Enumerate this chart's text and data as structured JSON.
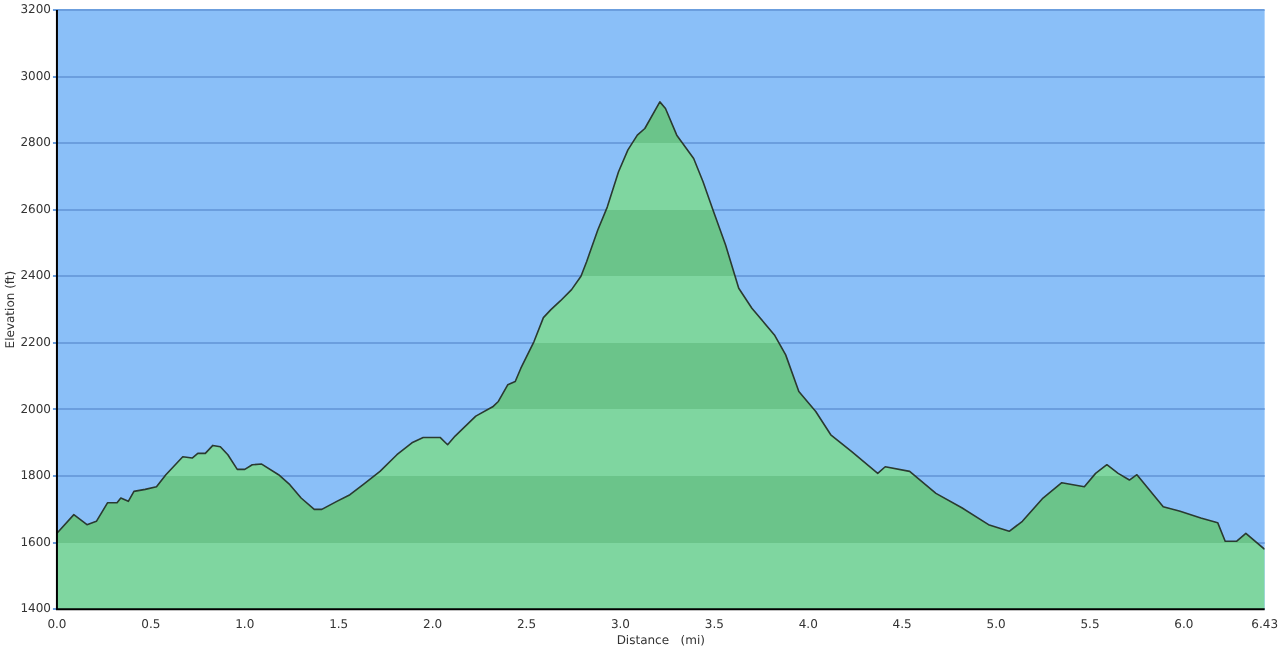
{
  "chart_data": {
    "type": "area",
    "xlabel": "Distance   (mi)",
    "ylabel": "Elevation (ft)",
    "xlim": [
      0,
      6.43
    ],
    "ylim": [
      1400,
      3200
    ],
    "xticks": [
      {
        "value": 0,
        "label": "0.0"
      },
      {
        "value": 0.5,
        "label": "0.5"
      },
      {
        "value": 1,
        "label": "1.0"
      },
      {
        "value": 1.5,
        "label": "1.5"
      },
      {
        "value": 2,
        "label": "2.0"
      },
      {
        "value": 2.5,
        "label": "2.5"
      },
      {
        "value": 3,
        "label": "3.0"
      },
      {
        "value": 3.5,
        "label": "3.5"
      },
      {
        "value": 4,
        "label": "4.0"
      },
      {
        "value": 4.5,
        "label": "4.5"
      },
      {
        "value": 5,
        "label": "5.0"
      },
      {
        "value": 5.5,
        "label": "5.5"
      },
      {
        "value": 6,
        "label": "6.0"
      },
      6.43
    ],
    "yticks": [
      1400,
      1600,
      1800,
      2000,
      2200,
      2400,
      2600,
      2800,
      3000,
      3200
    ],
    "grid": "y",
    "series": [
      {
        "color": "#7fd6a0",
        "x": [
          0,
          0.09,
          0.16,
          0.21,
          0.27,
          0.32,
          0.34,
          0.38,
          0.41,
          0.47,
          0.53,
          0.58,
          0.67,
          0.72,
          0.75,
          0.79,
          0.83,
          0.87,
          0.91,
          0.96,
          1.0,
          1.04,
          1.09,
          1.18,
          1.24,
          1.3,
          1.37,
          1.41,
          1.49,
          1.56,
          1.63,
          1.72,
          1.81,
          1.89,
          1.95,
          2.04,
          2.08,
          2.12,
          2.23,
          2.32,
          2.35,
          2.4,
          2.44,
          2.47,
          2.54,
          2.59,
          2.63,
          2.68,
          2.74,
          2.79,
          2.82,
          2.88,
          2.93,
          2.99,
          3.04,
          3.09,
          3.13,
          3.21,
          3.24,
          3.3,
          3.39,
          3.44,
          3.49,
          3.56,
          3.63,
          3.7,
          3.82,
          3.88,
          3.95,
          4.04,
          4.12,
          4.23,
          4.37,
          4.41,
          4.54,
          4.68,
          4.82,
          4.96,
          5.07,
          5.14,
          5.25,
          5.35,
          5.47,
          5.53,
          5.59,
          5.65,
          5.71,
          5.75,
          5.89,
          5.98,
          6.09,
          6.18,
          6.22,
          6.28,
          6.33,
          6.43
        ],
        "values": [
          1628,
          1684,
          1654,
          1664,
          1720,
          1720,
          1734,
          1724,
          1754,
          1760,
          1768,
          1804,
          1858,
          1854,
          1868,
          1868,
          1892,
          1888,
          1864,
          1820,
          1820,
          1834,
          1836,
          1804,
          1774,
          1734,
          1700,
          1700,
          1724,
          1744,
          1774,
          1814,
          1864,
          1900,
          1916,
          1916,
          1894,
          1920,
          1980,
          2008,
          2024,
          2074,
          2084,
          2124,
          2204,
          2276,
          2300,
          2326,
          2360,
          2400,
          2444,
          2540,
          2608,
          2714,
          2780,
          2824,
          2844,
          2924,
          2904,
          2824,
          2754,
          2684,
          2604,
          2494,
          2364,
          2304,
          2224,
          2164,
          2054,
          1994,
          1924,
          1874,
          1808,
          1828,
          1814,
          1748,
          1704,
          1654,
          1634,
          1664,
          1734,
          1780,
          1768,
          1808,
          1834,
          1808,
          1788,
          1804,
          1708,
          1694,
          1674,
          1660,
          1604,
          1604,
          1628,
          1580
        ]
      }
    ]
  }
}
